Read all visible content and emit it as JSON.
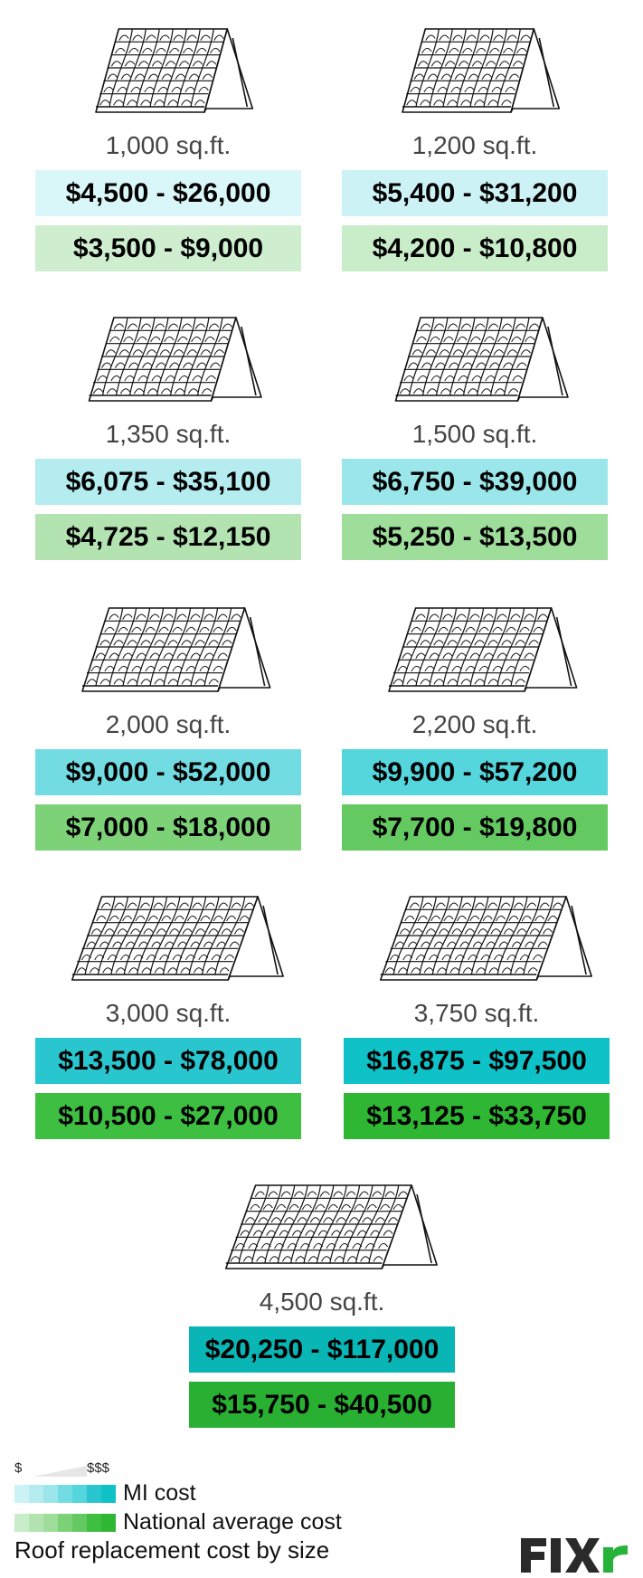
{
  "chart_data": {
    "type": "table",
    "title": "Roof replacement cost by size",
    "legend": {
      "scale_low": "$",
      "scale_high": "$$$",
      "local_label": "MI cost",
      "national_label": "National average cost"
    },
    "colors": {
      "local": [
        "#d9f6f8",
        "#cdf2f5",
        "#b4ecf0",
        "#9be6ea",
        "#73dce2",
        "#55d5dc",
        "#2ac6cf",
        "#0ec2c8",
        "#09b6b5"
      ],
      "national": [
        "#ceeecf",
        "#c9ecc9",
        "#b4e3b2",
        "#9edd9a",
        "#7dd278",
        "#64c960",
        "#3fbf41",
        "#2fb633",
        "#29af32"
      ]
    },
    "rows": [
      {
        "size": "1,000 sq.ft.",
        "local": "$4,500 - $26,000",
        "national": "$3,500 - $9,000"
      },
      {
        "size": "1,200 sq.ft.",
        "local": "$5,400 - $31,200",
        "national": "$4,200 - $10,800"
      },
      {
        "size": "1,350 sq.ft.",
        "local": "$6,075 - $35,100",
        "national": "$4,725 - $12,150"
      },
      {
        "size": "1,500 sq.ft.",
        "local": "$6,750 - $39,000",
        "national": "$5,250 - $13,500"
      },
      {
        "size": "2,000 sq.ft.",
        "local": "$9,000 - $52,000",
        "national": "$7,000 - $18,000"
      },
      {
        "size": "2,200 sq.ft.",
        "local": "$9,900 - $57,200",
        "national": "$7,700 - $19,800"
      },
      {
        "size": "3,000 sq.ft.",
        "local": "$13,500 - $78,000",
        "national": "$10,500 - $27,000"
      },
      {
        "size": "3,750 sq.ft.",
        "local": "$16,875 - $97,500",
        "national": "$13,125 - $33,750"
      },
      {
        "size": "4,500 sq.ft.",
        "local": "$20,250 - $117,000",
        "national": "$15,750 - $40,500"
      }
    ]
  },
  "brand": {
    "logo_text": "FIXr",
    "logo_color": "#2a2a2a",
    "logo_accent": "#27b33a"
  }
}
